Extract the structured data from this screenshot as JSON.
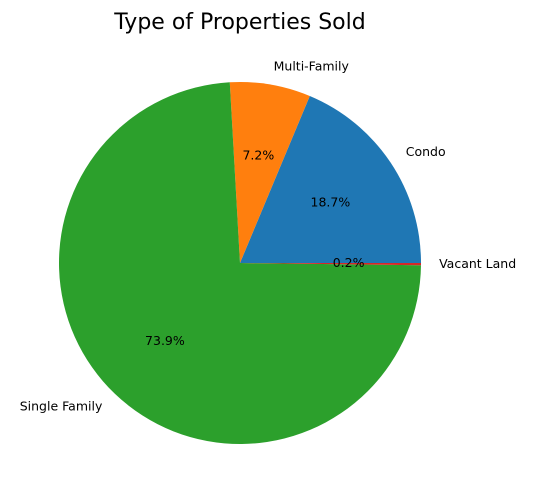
{
  "chart_data": {
    "type": "pie",
    "title": "Type of Properties Sold",
    "start_angle_deg": 0,
    "direction": "counterclockwise",
    "slices": [
      {
        "label": "Condo",
        "value": 18.7,
        "pct_label": "18.7%",
        "color": "#1f77b4"
      },
      {
        "label": "Multi-Family",
        "value": 7.2,
        "pct_label": "7.2%",
        "color": "#ff7f0e"
      },
      {
        "label": "Single Family",
        "value": 73.9,
        "pct_label": "73.9%",
        "color": "#2ca02c"
      },
      {
        "label": "Vacant Land",
        "value": 0.2,
        "pct_label": "0.2%",
        "color": "#d62728"
      }
    ]
  }
}
